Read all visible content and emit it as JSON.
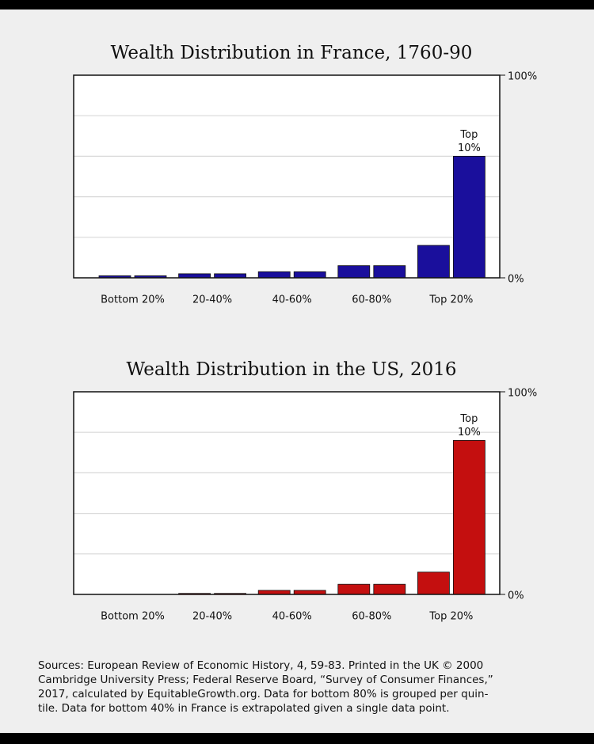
{
  "chart_data": [
    {
      "type": "bar",
      "title": "Wealth Distribution in France, 1760-90",
      "categories": [
        "Bottom 20%",
        null,
        "20-40%",
        null,
        "40-60%",
        null,
        "60-80%",
        null,
        "Top 20%",
        null
      ],
      "values": [
        1,
        1,
        2,
        2,
        3,
        3,
        6,
        6,
        16,
        60
      ],
      "color": "#1a0f9c",
      "ylim": [
        0,
        100
      ],
      "yticks": [
        {
          "value": 0,
          "label": "0%"
        },
        {
          "value": 100,
          "label": "100%"
        }
      ],
      "gridlines": [
        20,
        40,
        60,
        80
      ],
      "annotation": [
        "Top",
        "10%"
      ]
    },
    {
      "type": "bar",
      "title": "Wealth Distribution in the US, 2016",
      "categories": [
        "Bottom 20%",
        null,
        "20-40%",
        null,
        "40-60%",
        null,
        "60-80%",
        null,
        "Top 20%",
        null
      ],
      "values": [
        0,
        0,
        0.5,
        0.5,
        2,
        2,
        5,
        5,
        11,
        76
      ],
      "color": "#c40f0f",
      "ylim": [
        0,
        100
      ],
      "yticks": [
        {
          "value": 0,
          "label": "0%"
        },
        {
          "value": 100,
          "label": "100%"
        }
      ],
      "gridlines": [
        20,
        40,
        60,
        80
      ],
      "annotation": [
        "Top",
        "10%"
      ]
    }
  ],
  "sources": [
    "Sources: European Review of Economic History, 4, 59-83. Printed in the UK © 2000",
    "Cambridge University Press; Federal Reserve Board, “Survey of Consumer Finances,”",
    "2017, calculated by EquitableGrowth.org. Data for bottom 80% is grouped per quin-",
    "tile. Data for bottom 40% in France is extrapolated given a single data point."
  ]
}
